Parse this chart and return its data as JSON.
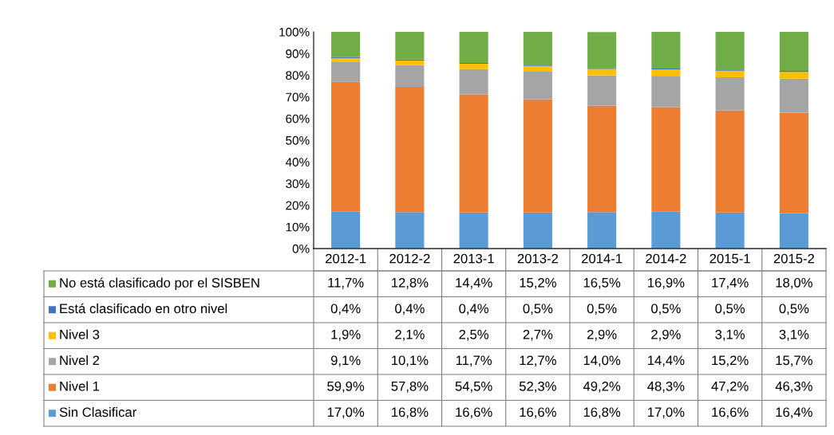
{
  "chart_data": {
    "type": "bar",
    "stacked": true,
    "categories": [
      "2012-1",
      "2012-2",
      "2013-1",
      "2013-2",
      "2014-1",
      "2014-2",
      "2015-1",
      "2015-2"
    ],
    "ylim": [
      0,
      100
    ],
    "yticks": [
      {
        "value": 0,
        "label": "0%"
      },
      {
        "value": 10,
        "label": "10%"
      },
      {
        "value": 20,
        "label": "20%"
      },
      {
        "value": 30,
        "label": "30%"
      },
      {
        "value": 40,
        "label": "40%"
      },
      {
        "value": 50,
        "label": "50%"
      },
      {
        "value": 60,
        "label": "60%"
      },
      {
        "value": 70,
        "label": "70%"
      },
      {
        "value": 80,
        "label": "80%"
      },
      {
        "value": 90,
        "label": "90%"
      },
      {
        "value": 100,
        "label": "100%"
      }
    ],
    "grid": false,
    "legend": "bottom left",
    "series": [
      {
        "name": "Sin Clasificar",
        "color": "#5b9bd5",
        "values": [
          17.0,
          16.8,
          16.6,
          16.6,
          16.8,
          17.0,
          16.6,
          16.4
        ],
        "value_labels": [
          "17,0%",
          "16,8%",
          "16,6%",
          "16,6%",
          "16,8%",
          "17,0%",
          "16,6%",
          "16,4%"
        ]
      },
      {
        "name": "Nivel 1",
        "color": "#ed7d31",
        "values": [
          59.9,
          57.8,
          54.5,
          52.3,
          49.2,
          48.3,
          47.2,
          46.3
        ],
        "value_labels": [
          "59,9%",
          "57,8%",
          "54,5%",
          "52,3%",
          "49,2%",
          "48,3%",
          "47,2%",
          "46,3%"
        ]
      },
      {
        "name": "Nivel 2",
        "color": "#a5a5a5",
        "values": [
          9.1,
          10.1,
          11.7,
          12.7,
          14.0,
          14.4,
          15.2,
          15.7
        ],
        "value_labels": [
          "9,1%",
          "10,1%",
          "11,7%",
          "12,7%",
          "14,0%",
          "14,4%",
          "15,2%",
          "15,7%"
        ]
      },
      {
        "name": "Nivel 3",
        "color": "#ffc000",
        "values": [
          1.9,
          2.1,
          2.5,
          2.7,
          2.9,
          2.9,
          3.1,
          3.1
        ],
        "value_labels": [
          "1,9%",
          "2,1%",
          "2,5%",
          "2,7%",
          "2,9%",
          "2,9%",
          "3,1%",
          "3,1%"
        ]
      },
      {
        "name": "Está clasificado en otro nivel",
        "color": "#4472c4",
        "values": [
          0.4,
          0.4,
          0.4,
          0.5,
          0.5,
          0.5,
          0.5,
          0.5
        ],
        "value_labels": [
          "0,4%",
          "0,4%",
          "0,4%",
          "0,5%",
          "0,5%",
          "0,5%",
          "0,5%",
          "0,5%"
        ]
      },
      {
        "name": "No está clasificado por el SISBEN",
        "color": "#70ad47",
        "values": [
          11.7,
          12.8,
          14.4,
          15.2,
          16.5,
          16.9,
          17.4,
          18.0
        ],
        "value_labels": [
          "11,7%",
          "12,8%",
          "14,4%",
          "15,2%",
          "16,5%",
          "16,9%",
          "17,4%",
          "18,0%"
        ]
      }
    ]
  }
}
